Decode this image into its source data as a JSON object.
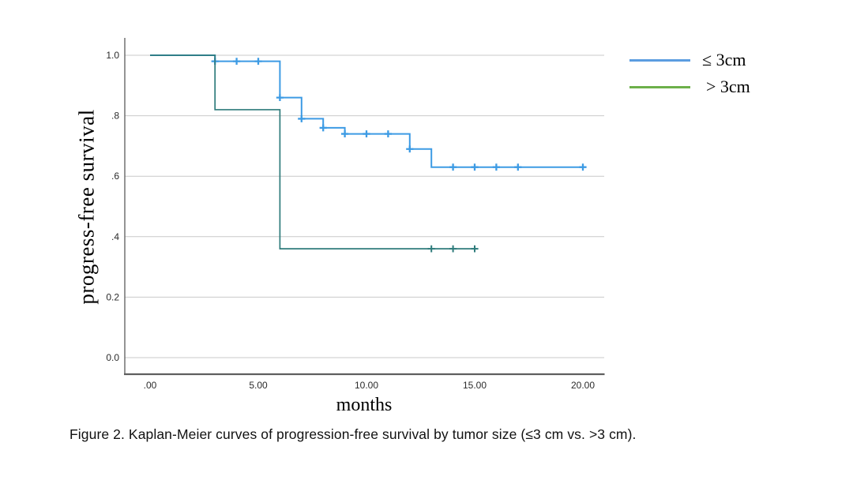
{
  "figure": {
    "caption": "Figure 2. Kaplan-Meier curves of progression-free survival by tumor size (≤3 cm vs. >3 cm)."
  },
  "chart_data": {
    "type": "line",
    "subtype": "kaplan-meier-step",
    "title": "",
    "xlabel": "months",
    "ylabel": "progress-free survival",
    "xlim": [
      -1.2,
      21
    ],
    "ylim": [
      -0.06,
      1.06
    ],
    "grid": "horizontal-only",
    "legend_position": "outside-right-top",
    "axis_color": "#666666",
    "gridline_color": "#c9c9c9",
    "tick_label_color": "#2b2b2b",
    "x_ticks": [
      {
        "value": 0,
        "label": ".00"
      },
      {
        "value": 5,
        "label": "5.00"
      },
      {
        "value": 10,
        "label": "10.00"
      },
      {
        "value": 15,
        "label": "15.00"
      },
      {
        "value": 20,
        "label": "20.00"
      }
    ],
    "y_ticks": [
      {
        "value": 0.0,
        "label": "0.0"
      },
      {
        "value": 0.2,
        "label": "0.2"
      },
      {
        "value": 0.4,
        "label": ".4"
      },
      {
        "value": 0.6,
        "label": ".6"
      },
      {
        "value": 0.8,
        "label": ".8"
      },
      {
        "value": 1.0,
        "label": "1.0"
      }
    ],
    "series": [
      {
        "name": "≤ 3cm",
        "curve_color": "#3d9be4",
        "legend_color": "#5b9de0",
        "line_width": 2,
        "steps": [
          [
            0,
            1.0
          ],
          [
            3,
            0.98
          ],
          [
            6,
            0.86
          ],
          [
            7,
            0.79
          ],
          [
            8,
            0.76
          ],
          [
            9,
            0.74
          ],
          [
            12,
            0.69
          ],
          [
            13,
            0.63
          ]
        ],
        "end_x": 20,
        "censors": [
          [
            3,
            0.98
          ],
          [
            4,
            0.98
          ],
          [
            5,
            0.98
          ],
          [
            6,
            0.86
          ],
          [
            7,
            0.79
          ],
          [
            8,
            0.76
          ],
          [
            9,
            0.74
          ],
          [
            10,
            0.74
          ],
          [
            11,
            0.74
          ],
          [
            12,
            0.69
          ],
          [
            14,
            0.63
          ],
          [
            15,
            0.63
          ],
          [
            16,
            0.63
          ],
          [
            17,
            0.63
          ],
          [
            20,
            0.63
          ]
        ]
      },
      {
        "name": "> 3cm",
        "curve_color": "#2e7b7b",
        "legend_color": "#6db04a",
        "line_width": 1.7,
        "steps": [
          [
            0,
            1.0
          ],
          [
            3,
            0.82
          ],
          [
            6,
            0.36
          ]
        ],
        "end_x": 15.1,
        "censors": [
          [
            13,
            0.36
          ],
          [
            14,
            0.36
          ],
          [
            15,
            0.36
          ]
        ]
      }
    ]
  }
}
